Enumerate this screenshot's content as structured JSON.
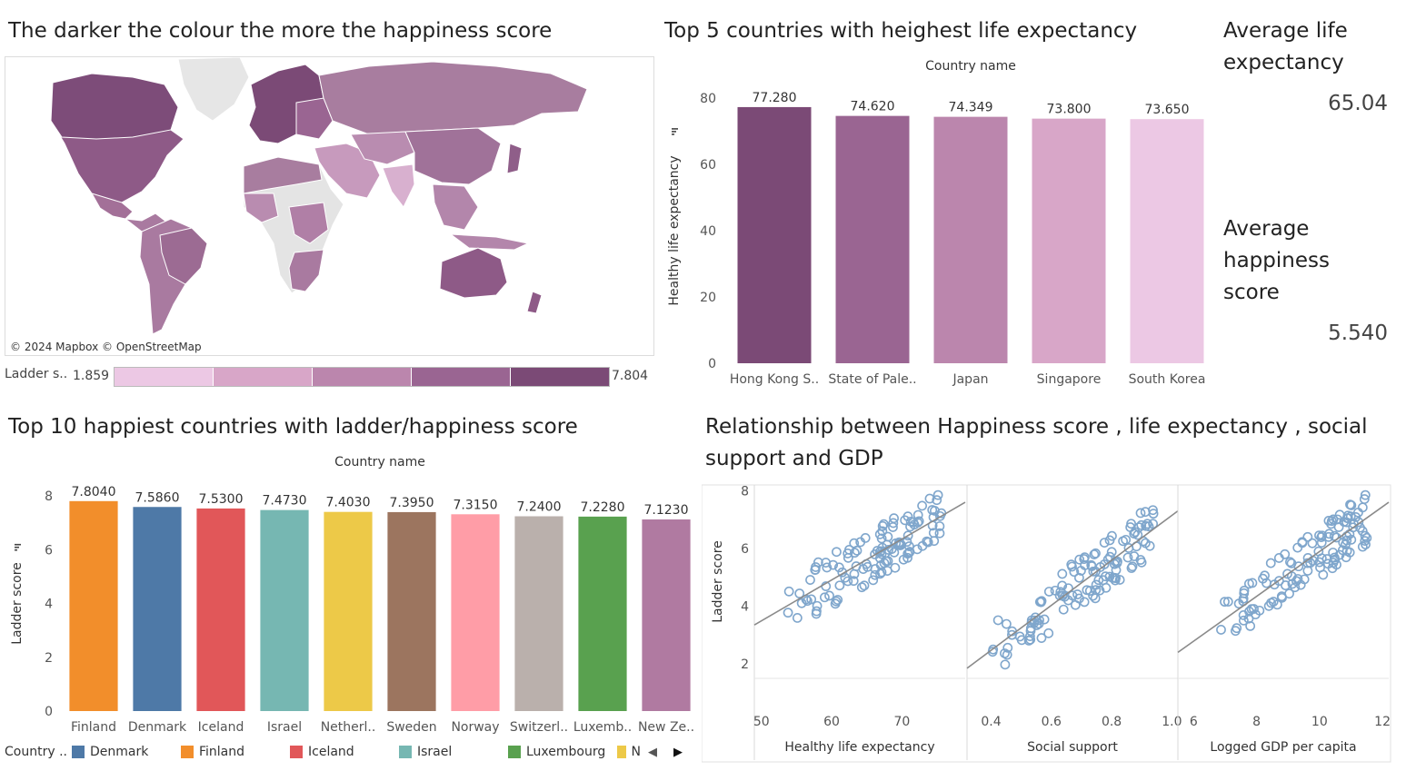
{
  "map_panel": {
    "title": "The darker the colour the more the happiness score",
    "attribution": "© 2024 Mapbox © OpenStreetMap",
    "legend_label": "Ladder s..",
    "legend_min": "1.859",
    "legend_max": "7.804",
    "color_steps": [
      "#ecc8e4",
      "#d8a6c8",
      "#bb86ad",
      "#9a6592",
      "#7b4a76"
    ]
  },
  "life_panel": {
    "title": "Top 5 countries with heighest life expectancy"
  },
  "kpis": {
    "avg_life_label": "Average life expectancy",
    "avg_life_value": "65.04",
    "avg_happiness_label": "Average happiness score",
    "avg_happiness_value": "5.540"
  },
  "happy_panel": {
    "title": "Top 10 happiest countries with ladder/happiness score",
    "legend_title": "Country ..",
    "legend_items": [
      {
        "label": "Denmark",
        "color": "#4e79a7"
      },
      {
        "label": "Finland",
        "color": "#f28e2b"
      },
      {
        "label": "Iceland",
        "color": "#e15759"
      },
      {
        "label": "Israel",
        "color": "#76b7b2"
      },
      {
        "label": "Luxembourg",
        "color": "#59a14f"
      },
      {
        "label": "N",
        "color": "#edc948"
      }
    ]
  },
  "scatter_panel": {
    "title": "Relationship between Happiness score , life expectancy , social support and GDP"
  },
  "chart_data": [
    {
      "id": "life",
      "type": "bar",
      "title": "Top 5 countries with heighest life expectancy",
      "column_header": "Country name",
      "ylabel": "Healthy life expectancy",
      "ylim": [
        0,
        80
      ],
      "yticks": [
        0,
        20,
        40,
        60,
        80
      ],
      "categories": [
        "Hong Kong S..",
        "State of Pale..",
        "Japan",
        "Singapore",
        "South Korea"
      ],
      "values": [
        77.28,
        74.62,
        74.349,
        73.8,
        73.65
      ],
      "labels": [
        "77.280",
        "74.620",
        "74.349",
        "73.800",
        "73.650"
      ],
      "colors": [
        "#7b4a76",
        "#9a6592",
        "#bb86ad",
        "#d8a6c8",
        "#ecc8e4"
      ]
    },
    {
      "id": "happy",
      "type": "bar",
      "title": "Top 10 happiest countries with ladder/happiness score",
      "column_header": "Country name",
      "ylabel": "Ladder score",
      "ylim": [
        0,
        8
      ],
      "yticks": [
        0,
        2,
        4,
        6,
        8
      ],
      "categories": [
        "Finland",
        "Denmark",
        "Iceland",
        "Israel",
        "Netherl..",
        "Sweden",
        "Norway",
        "Switzerl..",
        "Luxemb..",
        "New Ze.."
      ],
      "values": [
        7.804,
        7.586,
        7.53,
        7.473,
        7.403,
        7.395,
        7.315,
        7.24,
        7.228,
        7.123
      ],
      "labels": [
        "7.8040",
        "7.5860",
        "7.5300",
        "7.4730",
        "7.4030",
        "7.3950",
        "7.3150",
        "7.2400",
        "7.2280",
        "7.1230"
      ],
      "colors": [
        "#f28e2b",
        "#4e79a7",
        "#e15759",
        "#76b7b2",
        "#edc948",
        "#9c755f",
        "#ff9da7",
        "#bab0ac",
        "#59a14f",
        "#b07aa1"
      ]
    },
    {
      "id": "scatter",
      "type": "scatter",
      "ylabel": "Ladder score",
      "ylim": [
        1.5,
        8.2
      ],
      "yticks": [
        2,
        4,
        6,
        8
      ],
      "panels": [
        {
          "xlabel": "Healthy life expectancy",
          "xlim": [
            49,
            79
          ],
          "xticks": [
            50,
            60,
            70
          ],
          "trend": [
            [
              49,
              3.35
            ],
            [
              79,
              7.6
            ]
          ]
        },
        {
          "xlabel": "Social support",
          "xlim": [
            0.32,
            1.02
          ],
          "xticks": [
            0.4,
            0.6,
            0.8,
            1.0
          ],
          "xtick_labels": [
            "0.4",
            "0.6",
            "0.8",
            "1.0"
          ],
          "trend": [
            [
              0.32,
              1.85
            ],
            [
              1.02,
              7.3
            ]
          ]
        },
        {
          "xlabel": "Logged GDP per capita",
          "xlim": [
            5.5,
            12.2
          ],
          "xticks": [
            6,
            8,
            10,
            12
          ],
          "trend": [
            [
              5.5,
              2.4
            ],
            [
              12.2,
              7.6
            ]
          ]
        }
      ]
    }
  ]
}
